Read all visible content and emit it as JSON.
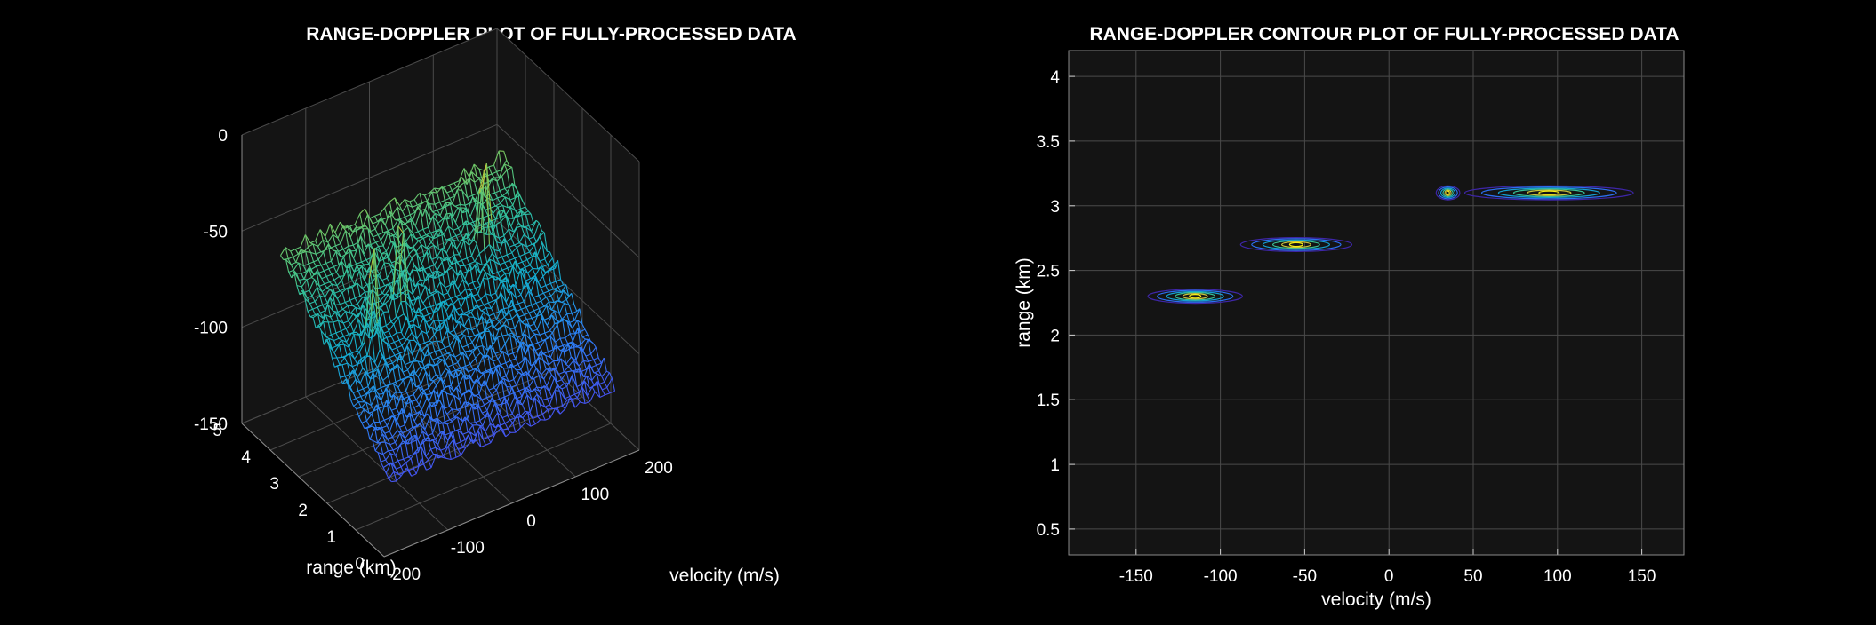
{
  "colors": {
    "background": "#000000",
    "axes_background": "#141414",
    "grid": "#4a4a4a",
    "text": "#ffffff"
  },
  "chart_data": [
    {
      "type": "surface",
      "title": "RANGE-DOPPLER PLOT OF FULLY-PROCESSED DATA",
      "xlabel": "velocity (m/s)",
      "ylabel": "range (km)",
      "zlabel": "",
      "xlim": [
        -200,
        200
      ],
      "ylim": [
        0,
        5
      ],
      "zlim": [
        -150,
        0
      ],
      "xticks": [
        "-200",
        "-100",
        "0",
        "100",
        "200"
      ],
      "yticks": [
        "0",
        "1",
        "2",
        "3",
        "4",
        "5"
      ],
      "zticks": [
        "0",
        "-50",
        "-100",
        "-150"
      ],
      "colormap": "parula",
      "grid": true,
      "data_extent": {
        "velocity": [
          -175,
          175
        ],
        "range": [
          0.3,
          4.2
        ]
      },
      "noise_floor_db": {
        "near_range_0.3km": -120,
        "far_range_4.2km": -55
      },
      "peaks": [
        {
          "velocity": -115,
          "range": 2.3,
          "db": -30
        },
        {
          "velocity": -55,
          "range": 2.7,
          "db": -25
        },
        {
          "velocity": 95,
          "range": 3.1,
          "db": -15
        }
      ]
    },
    {
      "type": "contour",
      "title": "RANGE-DOPPLER CONTOUR PLOT OF FULLY-PROCESSED DATA",
      "xlabel": "velocity (m/s)",
      "ylabel": "range (km)",
      "xlim": [
        -190,
        175
      ],
      "ylim": [
        0.3,
        4.2
      ],
      "xticks": [
        -150,
        -100,
        -50,
        0,
        50,
        100,
        150
      ],
      "yticks": [
        0.5,
        1,
        1.5,
        2,
        2.5,
        3,
        3.5,
        4
      ],
      "grid": true,
      "targets": [
        {
          "velocity": -115,
          "range": 2.3,
          "width": 28
        },
        {
          "velocity": -55,
          "range": 2.7,
          "width": 33
        },
        {
          "velocity": 95,
          "range": 3.1,
          "width": 50
        },
        {
          "velocity": 35,
          "range": 3.1,
          "width": 7
        }
      ]
    }
  ]
}
